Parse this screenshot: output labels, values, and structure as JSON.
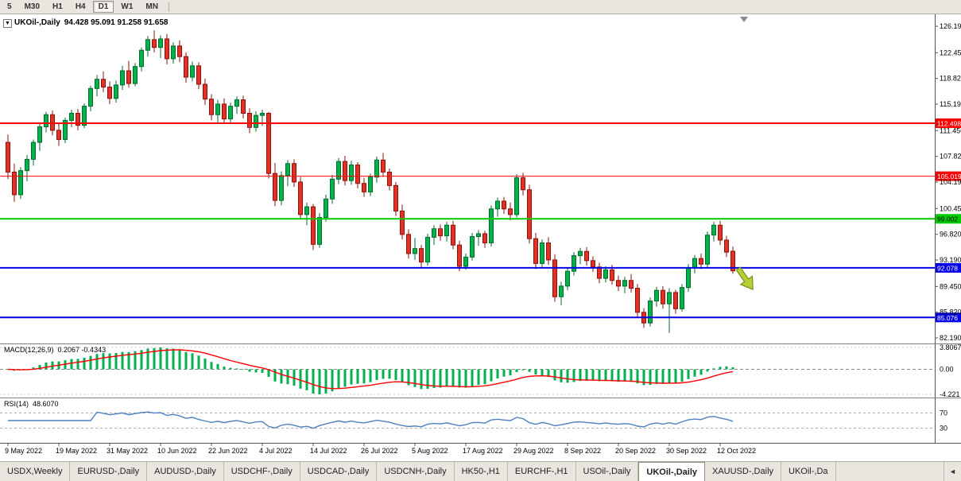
{
  "toolbar": {
    "timeframes": [
      {
        "label": "5",
        "active": false
      },
      {
        "label": "M30",
        "active": false
      },
      {
        "label": "H1",
        "active": false
      },
      {
        "label": "H4",
        "active": false
      },
      {
        "label": "D1",
        "active": true
      },
      {
        "label": "W1",
        "active": false
      },
      {
        "label": "MN",
        "active": false
      }
    ]
  },
  "tabs": {
    "scroll_left_icon": "◄",
    "items": [
      {
        "label": "USDX,Weekly",
        "active": false
      },
      {
        "label": "EURUSD-,Daily",
        "active": false
      },
      {
        "label": "AUDUSD-,Daily",
        "active": false
      },
      {
        "label": "USDCHF-,Daily",
        "active": false
      },
      {
        "label": "USDCAD-,Daily",
        "active": false
      },
      {
        "label": "USDCNH-,Daily",
        "active": false
      },
      {
        "label": "HK50-,H1",
        "active": false
      },
      {
        "label": "EURCHF-,H1",
        "active": false
      },
      {
        "label": "USOil-,Daily",
        "active": false
      },
      {
        "label": "UKOil-,Daily",
        "active": true
      },
      {
        "label": "XAUUSD-,Daily",
        "active": false
      },
      {
        "label": "UKOil-,Da",
        "active": false
      }
    ]
  },
  "chart_data": {
    "type": "candlestick",
    "symbol": "UKOil-",
    "timeframe": "Daily",
    "header": {
      "collapse_icon": "▼",
      "title": "UKOil-,Daily",
      "ohlc": "94.428 95.091 91.258 91.658"
    },
    "ylim": [
      82.19,
      126.19
    ],
    "y_axis": {
      "ticks": [
        "126.190",
        "122.450",
        "118.820",
        "115.190",
        "111.450",
        "107.820",
        "104.190",
        "100.450",
        "96.820",
        "93.190",
        "89.450",
        "85.820",
        "82.190"
      ]
    },
    "x_axis": {
      "labels": [
        {
          "label": "9 May 2022",
          "i": 0
        },
        {
          "label": "19 May 2022",
          "i": 8
        },
        {
          "label": "31 May 2022",
          "i": 16
        },
        {
          "label": "10 Jun 2022",
          "i": 24
        },
        {
          "label": "22 Jun 2022",
          "i": 32
        },
        {
          "label": "4 Jul 2022",
          "i": 40
        },
        {
          "label": "14 Jul 2022",
          "i": 48
        },
        {
          "label": "26 Jul 2022",
          "i": 56
        },
        {
          "label": "5 Aug 2022",
          "i": 64
        },
        {
          "label": "17 Aug 2022",
          "i": 72
        },
        {
          "label": "29 Aug 2022",
          "i": 80
        },
        {
          "label": "8 Sep 2022",
          "i": 88
        },
        {
          "label": "20 Sep 2022",
          "i": 96
        },
        {
          "label": "30 Sep 2022",
          "i": 104
        },
        {
          "label": "12 Oct 2022",
          "i": 112
        }
      ]
    },
    "hlines": [
      {
        "price": 112.498,
        "label": "112.498",
        "color": "#FF0000",
        "text_color": "#FFFFFF",
        "width": 2
      },
      {
        "price": 105.019,
        "label": "105.019",
        "color": "#FF0000",
        "text_color": "#FFFFFF",
        "width": 1
      },
      {
        "price": 99.002,
        "label": "99.002",
        "color": "#00CC00",
        "text_color": "#000000",
        "width": 2
      },
      {
        "price": 92.078,
        "label": "92.078",
        "color": "#0000E6",
        "text_color": "#FFFFFF",
        "width": 2
      },
      {
        "price": 85.076,
        "label": "85.076",
        "color": "#0000E6",
        "text_color": "#FFFFFF",
        "width": 2
      }
    ],
    "indicators": {
      "macd": {
        "name": "MACD(12,26,9)",
        "values": "0.2067 -0.4343",
        "scale_top": "3.8067",
        "scale_zero": "0.00",
        "scale_bottom": "-4.221",
        "histogram_color": "#00B050",
        "signal_color": "#FF0000",
        "params": {
          "fast": 12,
          "slow": 26,
          "signal": 9
        }
      },
      "rsi": {
        "name": "RSI(14)",
        "value": "48.6070",
        "period": 14,
        "levels": [
          70,
          30
        ],
        "level_labels": [
          "70",
          "30"
        ],
        "line_color": "#4F81BD"
      }
    },
    "colors": {
      "bull": "#00B24A",
      "bull_stroke": "#006B2D",
      "bear": "#E53125",
      "bear_stroke": "#8E1008",
      "axis_line": "#555555",
      "divider": "#808080"
    },
    "annotation": {
      "type": "arrow-down",
      "color": "#B8D032",
      "stroke": "#71921C",
      "candle_index": 116,
      "price": 90.5
    },
    "ohlc": [
      [
        109.8,
        110.9,
        104.6,
        105.6
      ],
      [
        105.6,
        106.8,
        101.4,
        102.4
      ],
      [
        102.4,
        106.3,
        101.8,
        105.8
      ],
      [
        105.8,
        108.0,
        104.3,
        107.4
      ],
      [
        107.4,
        110.2,
        106.5,
        109.8
      ],
      [
        109.8,
        112.5,
        108.6,
        112.0
      ],
      [
        112.0,
        114.1,
        111.2,
        113.7
      ],
      [
        113.7,
        114.3,
        110.8,
        111.5
      ],
      [
        111.5,
        112.4,
        109.3,
        110.2
      ],
      [
        110.2,
        113.3,
        109.7,
        112.9
      ],
      [
        112.9,
        114.4,
        111.9,
        113.9
      ],
      [
        113.9,
        114.5,
        111.5,
        112.2
      ],
      [
        112.2,
        115.3,
        111.8,
        114.9
      ],
      [
        114.9,
        117.8,
        114.2,
        117.4
      ],
      [
        117.4,
        119.3,
        116.3,
        118.7
      ],
      [
        118.7,
        119.8,
        116.9,
        117.6
      ],
      [
        117.6,
        118.4,
        115.2,
        116.0
      ],
      [
        116.0,
        118.5,
        115.4,
        117.9
      ],
      [
        117.9,
        120.6,
        117.2,
        119.9
      ],
      [
        119.9,
        121.3,
        117.5,
        118.1
      ],
      [
        118.1,
        121.0,
        117.7,
        120.5
      ],
      [
        120.5,
        123.2,
        119.8,
        122.8
      ],
      [
        122.8,
        124.8,
        121.9,
        124.3
      ],
      [
        124.3,
        125.6,
        122.5,
        123.2
      ],
      [
        123.2,
        124.9,
        121.7,
        124.4
      ],
      [
        124.4,
        125.1,
        120.8,
        121.6
      ],
      [
        121.6,
        123.9,
        120.9,
        123.4
      ],
      [
        123.4,
        124.2,
        121.1,
        121.9
      ],
      [
        121.9,
        122.5,
        118.2,
        119.0
      ],
      [
        119.0,
        121.2,
        118.4,
        120.6
      ],
      [
        120.6,
        121.1,
        117.3,
        118.0
      ],
      [
        118.0,
        118.8,
        115.1,
        115.9
      ],
      [
        115.9,
        116.6,
        112.9,
        113.7
      ],
      [
        113.7,
        115.8,
        112.6,
        115.2
      ],
      [
        115.2,
        116.0,
        112.4,
        113.1
      ],
      [
        113.1,
        115.4,
        112.5,
        114.9
      ],
      [
        114.9,
        116.3,
        113.8,
        115.8
      ],
      [
        115.8,
        116.4,
        113.2,
        113.9
      ],
      [
        113.9,
        114.6,
        111.1,
        111.9
      ],
      [
        111.9,
        114.2,
        111.3,
        113.6
      ],
      [
        113.6,
        114.4,
        112.1,
        113.9
      ],
      [
        113.9,
        114.1,
        104.7,
        105.4
      ],
      [
        105.4,
        106.9,
        100.8,
        101.6
      ],
      [
        101.6,
        105.7,
        100.9,
        105.1
      ],
      [
        105.1,
        107.3,
        103.6,
        106.8
      ],
      [
        106.8,
        107.4,
        103.5,
        104.2
      ],
      [
        104.2,
        104.9,
        98.9,
        99.6
      ],
      [
        99.6,
        101.3,
        98.1,
        100.7
      ],
      [
        100.7,
        101.1,
        94.6,
        95.4
      ],
      [
        95.4,
        99.8,
        94.9,
        99.2
      ],
      [
        99.2,
        102.4,
        98.6,
        101.8
      ],
      [
        101.8,
        105.2,
        101.1,
        104.6
      ],
      [
        104.6,
        107.6,
        103.9,
        107.1
      ],
      [
        107.1,
        107.9,
        103.7,
        104.4
      ],
      [
        104.4,
        107.2,
        103.8,
        106.6
      ],
      [
        106.6,
        107.0,
        103.3,
        104.0
      ],
      [
        104.0,
        104.8,
        102.1,
        102.8
      ],
      [
        102.8,
        105.4,
        102.2,
        104.9
      ],
      [
        104.9,
        107.8,
        104.1,
        107.3
      ],
      [
        107.3,
        108.3,
        104.9,
        105.6
      ],
      [
        105.6,
        106.1,
        103.0,
        103.7
      ],
      [
        103.7,
        104.2,
        99.4,
        100.1
      ],
      [
        100.1,
        101.0,
        96.1,
        96.8
      ],
      [
        96.8,
        97.5,
        93.4,
        94.1
      ],
      [
        94.1,
        96.3,
        93.2,
        94.8
      ],
      [
        94.8,
        95.3,
        92.0,
        92.9
      ],
      [
        92.9,
        96.9,
        92.4,
        96.4
      ],
      [
        96.4,
        98.1,
        95.3,
        97.6
      ],
      [
        97.6,
        98.2,
        95.9,
        96.6
      ],
      [
        96.6,
        98.6,
        95.8,
        98.1
      ],
      [
        98.1,
        98.7,
        94.7,
        95.3
      ],
      [
        95.3,
        95.9,
        91.6,
        92.3
      ],
      [
        92.3,
        94.1,
        91.8,
        93.6
      ],
      [
        93.6,
        97.0,
        93.1,
        96.5
      ],
      [
        96.5,
        97.4,
        95.2,
        96.9
      ],
      [
        96.9,
        97.3,
        94.9,
        95.6
      ],
      [
        95.6,
        100.9,
        95.1,
        100.4
      ],
      [
        100.4,
        102.0,
        99.3,
        101.5
      ],
      [
        101.5,
        102.1,
        99.7,
        100.4
      ],
      [
        100.4,
        101.3,
        98.8,
        99.6
      ],
      [
        99.6,
        105.3,
        99.2,
        104.8
      ],
      [
        104.8,
        105.5,
        102.3,
        103.1
      ],
      [
        103.1,
        103.8,
        95.5,
        96.2
      ],
      [
        96.2,
        97.0,
        91.9,
        92.7
      ],
      [
        92.7,
        96.1,
        92.2,
        95.6
      ],
      [
        95.6,
        96.4,
        92.5,
        93.2
      ],
      [
        93.2,
        94.0,
        87.3,
        88.0
      ],
      [
        88.0,
        90.1,
        86.8,
        89.5
      ],
      [
        89.5,
        92.1,
        88.9,
        91.6
      ],
      [
        91.6,
        94.3,
        91.0,
        93.8
      ],
      [
        93.8,
        94.9,
        92.6,
        94.4
      ],
      [
        94.4,
        95.0,
        92.4,
        93.1
      ],
      [
        93.1,
        93.7,
        91.5,
        92.2
      ],
      [
        92.2,
        92.8,
        89.9,
        90.6
      ],
      [
        90.6,
        92.3,
        90.0,
        91.8
      ],
      [
        91.8,
        92.5,
        89.7,
        90.3
      ],
      [
        90.3,
        91.0,
        88.8,
        89.5
      ],
      [
        89.5,
        90.8,
        88.5,
        90.3
      ],
      [
        90.3,
        91.2,
        88.6,
        89.2
      ],
      [
        89.2,
        89.8,
        85.1,
        85.8
      ],
      [
        85.8,
        86.4,
        83.6,
        84.3
      ],
      [
        84.3,
        87.9,
        83.8,
        87.4
      ],
      [
        87.4,
        89.4,
        86.6,
        88.9
      ],
      [
        88.9,
        89.5,
        86.3,
        87.0
      ],
      [
        87.0,
        89.2,
        82.9,
        88.6
      ],
      [
        88.6,
        89.0,
        85.6,
        86.3
      ],
      [
        86.3,
        89.8,
        85.9,
        89.3
      ],
      [
        89.3,
        92.6,
        88.7,
        92.1
      ],
      [
        92.1,
        93.9,
        91.3,
        93.4
      ],
      [
        93.4,
        94.1,
        91.9,
        92.6
      ],
      [
        92.6,
        97.2,
        92.2,
        96.7
      ],
      [
        96.7,
        98.6,
        95.8,
        98.1
      ],
      [
        98.1,
        98.7,
        95.3,
        96.0
      ],
      [
        96.0,
        96.6,
        93.6,
        94.3
      ],
      [
        94.428,
        95.091,
        91.258,
        91.658
      ]
    ]
  }
}
